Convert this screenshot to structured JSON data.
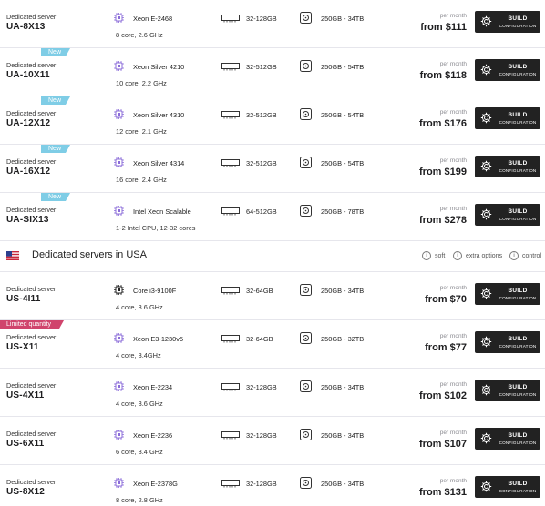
{
  "build_button": {
    "line1": "BUILD",
    "line2": "CONFIGURATION"
  },
  "colors": {
    "badge_new": "#7fcde6",
    "badge_limited": "#d0446c",
    "button": "#222222",
    "cpu_icon": "#8b6cd9"
  },
  "ua_rows": [
    {
      "badge": "",
      "type": "Dedicated server",
      "name": "UA-8X13",
      "cpu": "Xeon E-2468",
      "cpu_sub": "8 core, 2.6 GHz",
      "ram": "32-128GB",
      "disk": "250GB - 34TB",
      "per": "per month",
      "price": "from $111"
    },
    {
      "badge": "New",
      "type": "Dedicated server",
      "name": "UA-10X11",
      "cpu": "Xeon Silver 4210",
      "cpu_sub": "10 core, 2.2 GHz",
      "ram": "32-512GB",
      "disk": "250GB - 54TB",
      "per": "per month",
      "price": "from $118"
    },
    {
      "badge": "New",
      "type": "Dedicated server",
      "name": "UA-12X12",
      "cpu": "Xeon Silver 4310",
      "cpu_sub": "12 core, 2.1 GHz",
      "ram": "32-512GB",
      "disk": "250GB - 54TB",
      "per": "per month",
      "price": "from $176"
    },
    {
      "badge": "New",
      "type": "Dedicated server",
      "name": "UA-16X12",
      "cpu": "Xeon Silver 4314",
      "cpu_sub": "16 core, 2.4 GHz",
      "ram": "32-512GB",
      "disk": "250GB - 54TB",
      "per": "per month",
      "price": "from $199"
    },
    {
      "badge": "New",
      "type": "Dedicated server",
      "name": "UA-SIX13",
      "cpu": "Intel Xeon Scalable",
      "cpu_sub": "1-2 Intel CPU, 12-32 cores",
      "ram": "64-512GB",
      "disk": "250GB - 78TB",
      "per": "per month",
      "price": "from $278"
    }
  ],
  "usa_section": {
    "title": "Dedicated servers in USA",
    "legend": [
      "soft",
      "extra options",
      "control"
    ]
  },
  "us_rows": [
    {
      "badge": "",
      "type": "Dedicated server",
      "name": "US-4I11",
      "cpu": "Core i3-9100F",
      "cpu_sub": "4 core, 3.6 GHz",
      "ram": "32-64GB",
      "disk": "250GB - 34TB",
      "per": "per month",
      "price": "from $70"
    },
    {
      "badge": "Limited quantity",
      "type": "Dedicated server",
      "name": "US-X11",
      "cpu": "Xeon E3-1230v5",
      "cpu_sub": "4 core, 3.4GHz",
      "ram": "32-64GB",
      "disk": "250GB - 32TB",
      "per": "per month",
      "price": "from $77"
    },
    {
      "badge": "",
      "type": "Dedicated server",
      "name": "US-4X11",
      "cpu": "Xeon E-2234",
      "cpu_sub": "4 core, 3.6 GHz",
      "ram": "32-128GB",
      "disk": "250GB - 34TB",
      "per": "per month",
      "price": "from $102"
    },
    {
      "badge": "",
      "type": "Dedicated server",
      "name": "US-6X11",
      "cpu": "Xeon E-2236",
      "cpu_sub": "6 core, 3.4 GHz",
      "ram": "32-128GB",
      "disk": "250GB - 34TB",
      "per": "per month",
      "price": "from $107"
    },
    {
      "badge": "",
      "type": "Dedicated server",
      "name": "US-8X12",
      "cpu": "Xeon E-2378G",
      "cpu_sub": "8 core, 2.8 GHz",
      "ram": "32-128GB",
      "disk": "250GB - 34TB",
      "per": "per month",
      "price": "from $131"
    }
  ]
}
